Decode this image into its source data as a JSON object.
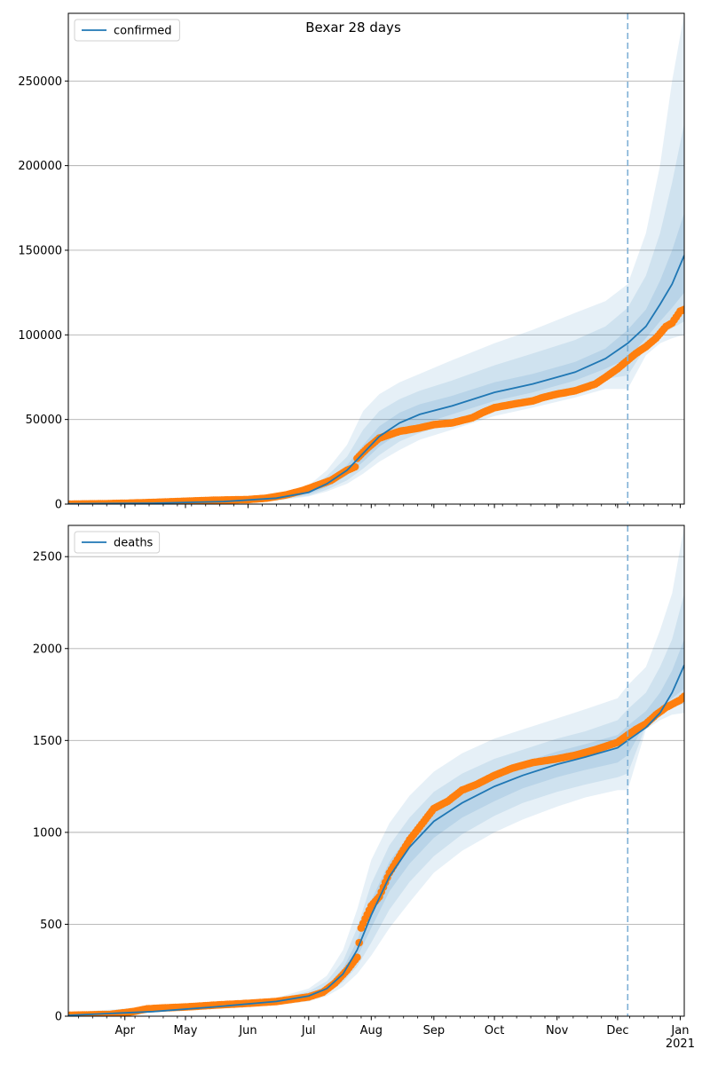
{
  "title": "Bexar 28 days",
  "colors": {
    "model": "#1f77b4",
    "observed": "#ff7f0e",
    "band": "#1f77b4",
    "cutoff": "#7eb0d5",
    "grid": "#b0b0b0"
  },
  "chart_data": [
    {
      "type": "line",
      "name": "confirmed-panel",
      "legend": [
        "confirmed"
      ],
      "legend_loc": "upper left",
      "grid": "y",
      "ylim": [
        0,
        290000
      ],
      "yticks": [
        0,
        50000,
        100000,
        150000,
        200000,
        250000
      ],
      "ytick_labels": [
        "0",
        "50000",
        "100000",
        "150000",
        "200000",
        "250000"
      ],
      "xlim": [
        "2020-03-04",
        "2021-01-03"
      ],
      "cutoff_date": "2020-12-06",
      "model_line": {
        "x": [
          "2020-03-04",
          "2020-04-15",
          "2020-05-20",
          "2020-06-15",
          "2020-07-01",
          "2020-07-10",
          "2020-07-20",
          "2020-07-28",
          "2020-08-05",
          "2020-08-15",
          "2020-08-25",
          "2020-09-10",
          "2020-10-01",
          "2020-10-20",
          "2020-11-10",
          "2020-11-25",
          "2020-12-06",
          "2020-12-15",
          "2020-12-22",
          "2020-12-28",
          "2021-01-03"
        ],
        "y": [
          200,
          500,
          1500,
          3500,
          7000,
          12000,
          20000,
          30000,
          40000,
          48000,
          53000,
          58000,
          66000,
          71000,
          78000,
          86000,
          95000,
          105000,
          118000,
          130000,
          147000
        ]
      },
      "bands": {
        "x": [
          "2020-03-04",
          "2020-06-15",
          "2020-07-01",
          "2020-07-10",
          "2020-07-20",
          "2020-07-28",
          "2020-08-05",
          "2020-08-15",
          "2020-08-25",
          "2020-09-10",
          "2020-10-01",
          "2020-10-20",
          "2020-11-10",
          "2020-11-25",
          "2020-12-06",
          "2020-12-15",
          "2020-12-22",
          "2020-12-28",
          "2021-01-03"
        ],
        "lo3": [
          0,
          2000,
          4500,
          7500,
          12000,
          18000,
          25000,
          32000,
          38000,
          44000,
          52000,
          57000,
          63000,
          68000,
          68000,
          88000,
          95000,
          98000,
          100000
        ],
        "hi3": [
          500,
          5000,
          11000,
          20000,
          35000,
          55000,
          65000,
          72000,
          77000,
          85000,
          95000,
          103000,
          113000,
          120000,
          130000,
          160000,
          200000,
          250000,
          290000
        ],
        "lo2": [
          0,
          2500,
          5000,
          8500,
          14000,
          21000,
          29000,
          37000,
          42000,
          48000,
          56000,
          61000,
          68000,
          74000,
          76000,
          93000,
          100000,
          104000,
          108000
        ],
        "hi2": [
          400,
          4500,
          9500,
          16500,
          28000,
          44000,
          55000,
          62000,
          67000,
          73000,
          82000,
          89000,
          97000,
          105000,
          116000,
          135000,
          160000,
          190000,
          225000
        ],
        "lo1": [
          100,
          3000,
          6000,
          10000,
          17000,
          25000,
          34000,
          42000,
          47000,
          53000,
          61000,
          66000,
          73000,
          80000,
          86000,
          98000,
          108000,
          116000,
          125000
        ],
        "hi1": [
          300,
          4000,
          8000,
          14000,
          23000,
          35000,
          46000,
          54000,
          59000,
          64000,
          72000,
          77000,
          84000,
          92000,
          103000,
          115000,
          132000,
          150000,
          172000
        ]
      },
      "observed": {
        "x": [
          "2020-03-04",
          "2020-03-20",
          "2020-04-01",
          "2020-04-15",
          "2020-05-01",
          "2020-05-15",
          "2020-06-01",
          "2020-06-10",
          "2020-06-20",
          "2020-06-28",
          "2020-07-05",
          "2020-07-12",
          "2020-07-20",
          "2020-07-24",
          "2020-07-25",
          "2020-07-30",
          "2020-08-05",
          "2020-08-10",
          "2020-08-15",
          "2020-08-20",
          "2020-08-25",
          "2020-09-01",
          "2020-09-10",
          "2020-09-20",
          "2020-09-25",
          "2020-10-01",
          "2020-10-10",
          "2020-10-20",
          "2020-10-25",
          "2020-11-01",
          "2020-11-10",
          "2020-11-20",
          "2020-11-25",
          "2020-12-01",
          "2020-12-06",
          "2020-12-10",
          "2020-12-15",
          "2020-12-20",
          "2020-12-25",
          "2020-12-28",
          "2021-01-01",
          "2021-01-03"
        ],
        "y": [
          0,
          200,
          500,
          1000,
          1700,
          2300,
          2700,
          3500,
          5500,
          8000,
          11000,
          14000,
          20000,
          22000,
          27000,
          33000,
          39000,
          41000,
          43000,
          44000,
          45000,
          47000,
          48000,
          51000,
          54000,
          57000,
          59000,
          61000,
          63000,
          65000,
          67000,
          71000,
          75000,
          80000,
          85000,
          89000,
          93000,
          98000,
          105000,
          107000,
          114000,
          115000
        ]
      }
    },
    {
      "type": "line",
      "name": "deaths-panel",
      "legend": [
        "deaths"
      ],
      "legend_loc": "upper left",
      "grid": "y",
      "ylim": [
        0,
        2670
      ],
      "yticks": [
        0,
        500,
        1000,
        1500,
        2000,
        2500
      ],
      "ytick_labels": [
        "0",
        "500",
        "1000",
        "1500",
        "2000",
        "2500"
      ],
      "xlim": [
        "2020-03-04",
        "2021-01-03"
      ],
      "xtick_labels": [
        "Apr",
        "May",
        "Jun",
        "Jul",
        "Aug",
        "Sep",
        "Oct",
        "Nov",
        "Dec",
        "Jan\n2021"
      ],
      "xtick_dates": [
        "2020-04-01",
        "2020-05-01",
        "2020-06-01",
        "2020-07-01",
        "2020-08-01",
        "2020-09-01",
        "2020-10-01",
        "2020-11-01",
        "2020-12-01",
        "2021-01-01"
      ],
      "cutoff_date": "2020-12-06",
      "model_line": {
        "x": [
          "2020-03-04",
          "2020-04-15",
          "2020-05-15",
          "2020-06-15",
          "2020-07-01",
          "2020-07-10",
          "2020-07-18",
          "2020-07-25",
          "2020-08-01",
          "2020-08-10",
          "2020-08-20",
          "2020-09-01",
          "2020-09-15",
          "2020-10-01",
          "2020-10-15",
          "2020-11-01",
          "2020-11-15",
          "2020-12-01",
          "2020-12-06",
          "2020-12-15",
          "2020-12-22",
          "2020-12-28",
          "2021-01-03"
        ],
        "y": [
          5,
          25,
          50,
          80,
          110,
          150,
          230,
          360,
          550,
          760,
          920,
          1060,
          1160,
          1250,
          1310,
          1370,
          1410,
          1460,
          1500,
          1570,
          1650,
          1760,
          1910
        ]
      },
      "bands": {
        "x": [
          "2020-03-04",
          "2020-06-15",
          "2020-07-01",
          "2020-07-10",
          "2020-07-18",
          "2020-07-25",
          "2020-08-01",
          "2020-08-10",
          "2020-08-20",
          "2020-09-01",
          "2020-09-15",
          "2020-10-01",
          "2020-10-15",
          "2020-11-01",
          "2020-11-15",
          "2020-12-01",
          "2020-12-06",
          "2020-12-15",
          "2020-12-22",
          "2020-12-28",
          "2021-01-03"
        ],
        "lo3": [
          0,
          60,
          80,
          110,
          160,
          230,
          330,
          480,
          620,
          780,
          900,
          1000,
          1070,
          1140,
          1190,
          1230,
          1230,
          1560,
          1610,
          1640,
          1650
        ],
        "hi3": [
          20,
          100,
          150,
          220,
          360,
          580,
          850,
          1050,
          1200,
          1330,
          1430,
          1510,
          1560,
          1620,
          1670,
          1730,
          1800,
          1900,
          2100,
          2300,
          2670
        ],
        "lo2": [
          2,
          68,
          90,
          125,
          185,
          270,
          400,
          580,
          730,
          870,
          990,
          1090,
          1160,
          1220,
          1260,
          1300,
          1320,
          1580,
          1640,
          1680,
          1700
        ],
        "hi2": [
          12,
          92,
          135,
          190,
          300,
          480,
          720,
          930,
          1080,
          1220,
          1320,
          1400,
          1450,
          1510,
          1550,
          1610,
          1670,
          1760,
          1900,
          2050,
          2300
        ],
        "lo1": [
          4,
          74,
          100,
          140,
          210,
          320,
          480,
          680,
          830,
          970,
          1080,
          1170,
          1240,
          1300,
          1340,
          1380,
          1420,
          1600,
          1680,
          1730,
          1780
        ],
        "hi1": [
          8,
          86,
          120,
          165,
          260,
          410,
          630,
          840,
          990,
          1140,
          1240,
          1320,
          1380,
          1440,
          1480,
          1530,
          1580,
          1660,
          1760,
          1880,
          2050
        ]
      },
      "observed": {
        "x": [
          "2020-03-04",
          "2020-03-25",
          "2020-04-05",
          "2020-04-12",
          "2020-04-20",
          "2020-05-01",
          "2020-05-15",
          "2020-06-01",
          "2020-06-15",
          "2020-07-01",
          "2020-07-08",
          "2020-07-14",
          "2020-07-20",
          "2020-07-25",
          "2020-07-27",
          "2020-07-29",
          "2020-08-01",
          "2020-08-05",
          "2020-08-10",
          "2020-08-15",
          "2020-08-20",
          "2020-08-25",
          "2020-09-01",
          "2020-09-08",
          "2020-09-15",
          "2020-09-22",
          "2020-10-01",
          "2020-10-10",
          "2020-10-20",
          "2020-11-01",
          "2020-11-10",
          "2020-11-20",
          "2020-12-01",
          "2020-12-06",
          "2020-12-10",
          "2020-12-15",
          "2020-12-20",
          "2020-12-25",
          "2021-01-01",
          "2021-01-03"
        ],
        "y": [
          5,
          10,
          25,
          40,
          45,
          50,
          60,
          70,
          80,
          105,
          130,
          180,
          250,
          320,
          480,
          530,
          600,
          650,
          780,
          870,
          960,
          1030,
          1130,
          1170,
          1230,
          1260,
          1310,
          1350,
          1380,
          1400,
          1420,
          1450,
          1490,
          1530,
          1560,
          1590,
          1640,
          1680,
          1720,
          1740
        ]
      }
    }
  ]
}
